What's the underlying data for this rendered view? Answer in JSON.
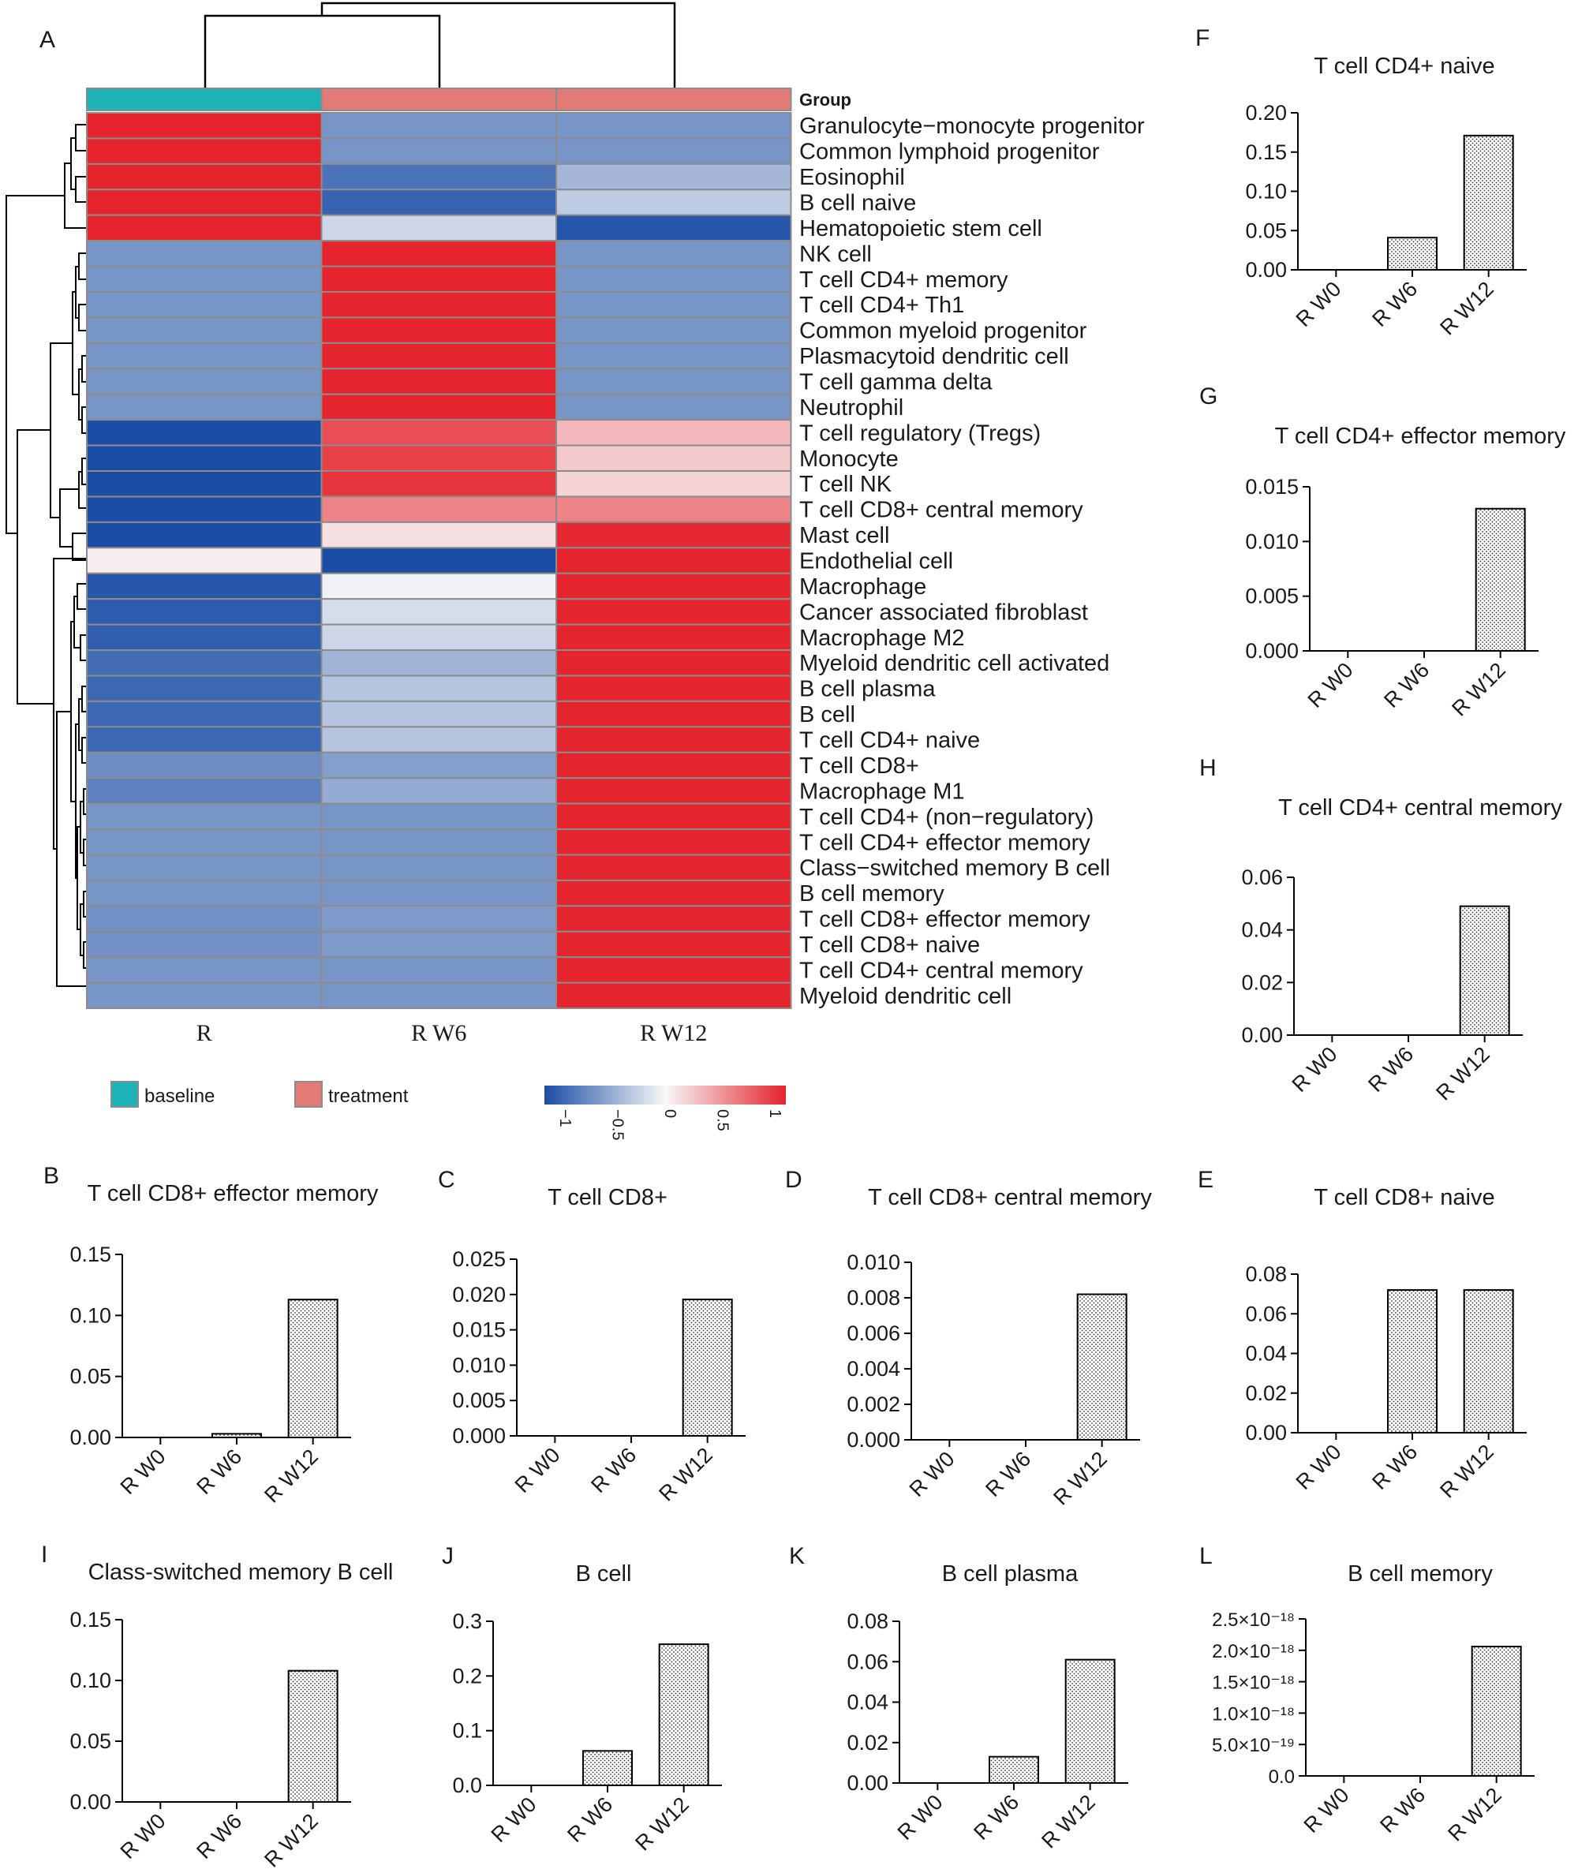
{
  "colors": {
    "low": "#1b4da6",
    "mid": "#f8f8f8",
    "high": "#e5242d",
    "baseline": "#1cb2b6",
    "treatment": "#e27a76",
    "grid": "#8c8c8c"
  },
  "heatmap": {
    "panel": "A",
    "group_label": "Group",
    "columns": [
      "R",
      "R W6",
      "R W12"
    ],
    "column_groups": [
      "baseline",
      "treatment",
      "treatment"
    ],
    "legend": {
      "baseline": "baseline",
      "treatment": "treatment"
    },
    "colorbar_ticks": [
      "−1",
      "−0.5",
      "0",
      "0.5",
      "1"
    ],
    "rows": [
      "Granulocyte−monocyte progenitor",
      "Common lymphoid progenitor",
      "Eosinophil",
      "B cell naive",
      "Hematopoietic stem cell",
      "NK cell",
      "T cell CD4+ memory",
      "T cell CD4+ Th1",
      "Common myeloid progenitor",
      "Plasmacytoid dendritic cell",
      "T cell gamma delta",
      "Neutrophil",
      "T cell regulatory (Tregs)",
      "Monocyte",
      "T cell NK",
      "T cell CD8+ central memory",
      "Mast cell",
      "Endothelial cell",
      "Macrophage",
      "Cancer associated fibroblast",
      "Macrophage M2",
      "Myeloid dendritic cell activated",
      "B cell plasma",
      "B cell",
      "T cell CD4+ naive",
      "T cell CD8+",
      "Macrophage M1",
      "T cell CD4+ (non−regulatory)",
      "T cell CD4+ effector memory",
      "Class−switched memory B cell",
      "B cell memory",
      "T cell CD8+ effector memory",
      "T cell CD8+ naive",
      "T cell CD4+ central memory",
      "Myeloid dendritic cell"
    ],
    "values": [
      [
        1.15,
        -0.58,
        -0.58
      ],
      [
        1.15,
        -0.58,
        -0.58
      ],
      [
        1.15,
        -0.78,
        -0.38
      ],
      [
        1.15,
        -0.88,
        -0.27
      ],
      [
        1.15,
        -0.2,
        -0.95
      ],
      [
        -0.58,
        1.15,
        -0.58
      ],
      [
        -0.58,
        1.15,
        -0.58
      ],
      [
        -0.58,
        1.15,
        -0.58
      ],
      [
        -0.58,
        1.15,
        -0.58
      ],
      [
        -0.58,
        1.15,
        -0.58
      ],
      [
        -0.58,
        1.15,
        -0.58
      ],
      [
        -0.58,
        1.15,
        -0.58
      ],
      [
        -1.1,
        0.8,
        0.3
      ],
      [
        -1.1,
        0.87,
        0.22
      ],
      [
        -1.1,
        0.92,
        0.18
      ],
      [
        -1.1,
        0.55,
        0.55
      ],
      [
        -1.1,
        0.12,
        0.98
      ],
      [
        0.05,
        -1.05,
        1.0
      ],
      [
        -0.95,
        -0.04,
        1.0
      ],
      [
        -0.92,
        -0.16,
        1.08
      ],
      [
        -0.9,
        -0.2,
        1.1
      ],
      [
        -0.82,
        -0.4,
        1.15
      ],
      [
        -0.85,
        -0.3,
        1.15
      ],
      [
        -0.85,
        -0.3,
        1.15
      ],
      [
        -0.85,
        -0.3,
        1.15
      ],
      [
        -0.63,
        -0.52,
        1.15
      ],
      [
        -0.7,
        -0.45,
        1.15
      ],
      [
        -0.58,
        -0.58,
        1.15
      ],
      [
        -0.58,
        -0.58,
        1.15
      ],
      [
        -0.58,
        -0.58,
        1.15
      ],
      [
        -0.58,
        -0.58,
        1.15
      ],
      [
        -0.6,
        -0.55,
        1.15
      ],
      [
        -0.6,
        -0.55,
        1.15
      ],
      [
        -0.58,
        -0.58,
        1.15
      ],
      [
        -0.58,
        -0.58,
        1.15
      ]
    ]
  },
  "chart_data": [
    {
      "type": "bar",
      "panel": "B",
      "title": "T cell CD8+ effector memory",
      "categories": [
        "R W0",
        "R W6",
        "R W12"
      ],
      "values": [
        0,
        0.003,
        0.113
      ],
      "ylim": [
        0,
        0.15
      ],
      "yticks": [
        "0.00",
        "0.05",
        "0.10",
        "0.15"
      ]
    },
    {
      "type": "bar",
      "panel": "C",
      "title": "T cell CD8+",
      "categories": [
        "R W0",
        "R W6",
        "R W12"
      ],
      "values": [
        0,
        0,
        0.0193
      ],
      "ylim": [
        0,
        0.025
      ],
      "yticks": [
        "0.000",
        "0.005",
        "0.010",
        "0.015",
        "0.020",
        "0.025"
      ]
    },
    {
      "type": "bar",
      "panel": "D",
      "title": "T cell CD8+ central memory",
      "categories": [
        "R W0",
        "R W6",
        "R W12"
      ],
      "values": [
        0,
        0,
        0.0082
      ],
      "ylim": [
        0,
        0.01
      ],
      "yticks": [
        "0.000",
        "0.002",
        "0.004",
        "0.006",
        "0.008",
        "0.010"
      ]
    },
    {
      "type": "bar",
      "panel": "E",
      "title": "T cell CD8+ naive",
      "categories": [
        "R W0",
        "R W6",
        "R W12"
      ],
      "values": [
        0,
        0.072,
        0.072
      ],
      "ylim": [
        0,
        0.08
      ],
      "yticks": [
        "0.00",
        "0.02",
        "0.04",
        "0.06",
        "0.08"
      ]
    },
    {
      "type": "bar",
      "panel": "F",
      "title": "T cell CD4+ naive",
      "categories": [
        "R W0",
        "R W6",
        "R W12"
      ],
      "values": [
        0,
        0.041,
        0.171
      ],
      "ylim": [
        0,
        0.2
      ],
      "yticks": [
        "0.00",
        "0.05",
        "0.10",
        "0.15",
        "0.20"
      ]
    },
    {
      "type": "bar",
      "panel": "G",
      "title": "T cell CD4+ effector memory",
      "categories": [
        "R W0",
        "R W6",
        "R W12"
      ],
      "values": [
        0,
        0,
        0.013
      ],
      "ylim": [
        0,
        0.015
      ],
      "yticks": [
        "0.000",
        "0.005",
        "0.010",
        "0.015"
      ]
    },
    {
      "type": "bar",
      "panel": "H",
      "title": "T cell CD4+ central memory",
      "categories": [
        "R W0",
        "R W6",
        "R W12"
      ],
      "values": [
        0,
        0,
        0.049
      ],
      "ylim": [
        0,
        0.06
      ],
      "yticks": [
        "0.00",
        "0.02",
        "0.04",
        "0.06"
      ]
    },
    {
      "type": "bar",
      "panel": "I",
      "title": "Class-switched memory B cell",
      "categories": [
        "R W0",
        "R W6",
        "R W12"
      ],
      "values": [
        0,
        0,
        0.108
      ],
      "ylim": [
        0,
        0.15
      ],
      "yticks": [
        "0.00",
        "0.05",
        "0.10",
        "0.15"
      ]
    },
    {
      "type": "bar",
      "panel": "J",
      "title": "B cell",
      "categories": [
        "R W0",
        "R W6",
        "R W12"
      ],
      "values": [
        0,
        0.063,
        0.258
      ],
      "ylim": [
        0,
        0.3
      ],
      "yticks": [
        "0.0",
        "0.1",
        "0.2",
        "0.3"
      ]
    },
    {
      "type": "bar",
      "panel": "K",
      "title": "B cell plasma",
      "categories": [
        "R W0",
        "R W6",
        "R W12"
      ],
      "values": [
        0,
        0.013,
        0.061
      ],
      "ylim": [
        0,
        0.08
      ],
      "yticks": [
        "0.00",
        "0.02",
        "0.04",
        "0.06",
        "0.08"
      ]
    },
    {
      "type": "bar",
      "panel": "L",
      "title": "B cell memory",
      "categories": [
        "R W0",
        "R W6",
        "R W12"
      ],
      "values": [
        0,
        0,
        2.06e-18
      ],
      "ylim": [
        0,
        2.5e-18
      ],
      "yticks": [
        "0.0",
        "5.0×10⁻¹⁹",
        "1.0×10⁻¹⁸",
        "1.5×10⁻¹⁸",
        "2.0×10⁻¹⁸",
        "2.5×10⁻¹⁸"
      ]
    }
  ]
}
